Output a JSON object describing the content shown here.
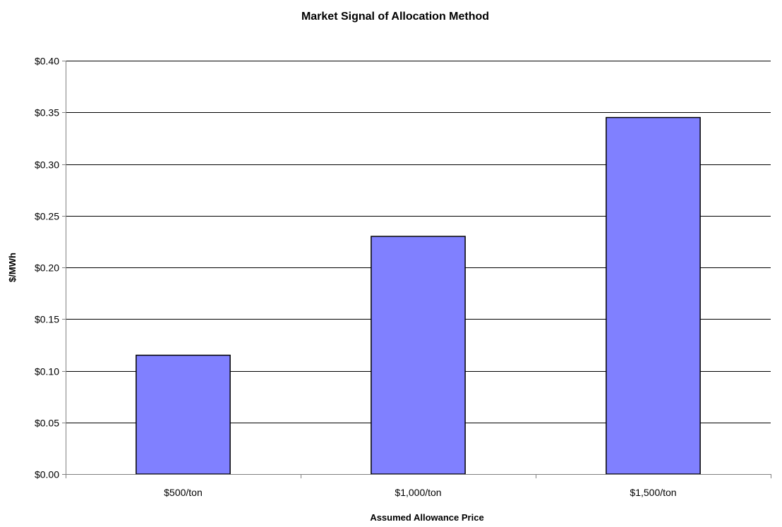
{
  "chart_data": {
    "type": "bar",
    "title": "Market Signal of Allocation Method",
    "xlabel": "Assumed Allowance Price",
    "ylabel": "$/MWh",
    "categories": [
      "$500/ton",
      "$1,000/ton",
      "$1,500/ton"
    ],
    "values": [
      0.115,
      0.23,
      0.345
    ],
    "ylim": [
      0,
      0.4
    ],
    "yticks": [
      0,
      0.05,
      0.1,
      0.15,
      0.2,
      0.25,
      0.3,
      0.35,
      0.4
    ],
    "ytick_labels": [
      "$0.00",
      "$0.05",
      "$0.10",
      "$0.15",
      "$0.20",
      "$0.25",
      "$0.30",
      "$0.35",
      "$0.40"
    ],
    "grid": true,
    "legend": "none",
    "colors": {
      "bar_fill": "#8080ff",
      "bar_stroke": "#000000",
      "grid": "#000000",
      "axis": "#808080"
    }
  }
}
